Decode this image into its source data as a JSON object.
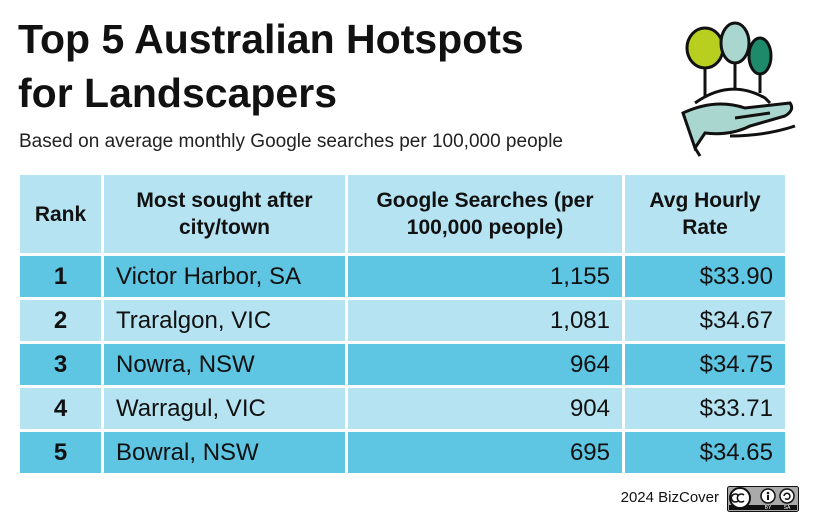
{
  "header": {
    "title_lines": [
      "Top 5 Australian Hotspots",
      "for Landscapers"
    ],
    "subtitle": "Based on average monthly Google searches per 100,000 people"
  },
  "table": {
    "columns": [
      "Rank",
      "Most sought after city/town",
      "Google Searches (per 100,000 people)",
      "Avg Hourly Rate"
    ],
    "rows": [
      [
        "1",
        "Victor Harbor, SA",
        "1,155",
        "$33.90"
      ],
      [
        "2",
        "Traralgon, VIC",
        "1,081",
        "$34.67"
      ],
      [
        "3",
        "Nowra, NSW",
        "964",
        "$34.75"
      ],
      [
        "4",
        "Warragul, VIC",
        "904",
        "$33.71"
      ],
      [
        "5",
        "Bowral, NSW",
        "695",
        "$34.65"
      ]
    ]
  },
  "footer": {
    "credit": "2024 BizCover",
    "license": [
      "BY",
      "SA"
    ]
  }
}
